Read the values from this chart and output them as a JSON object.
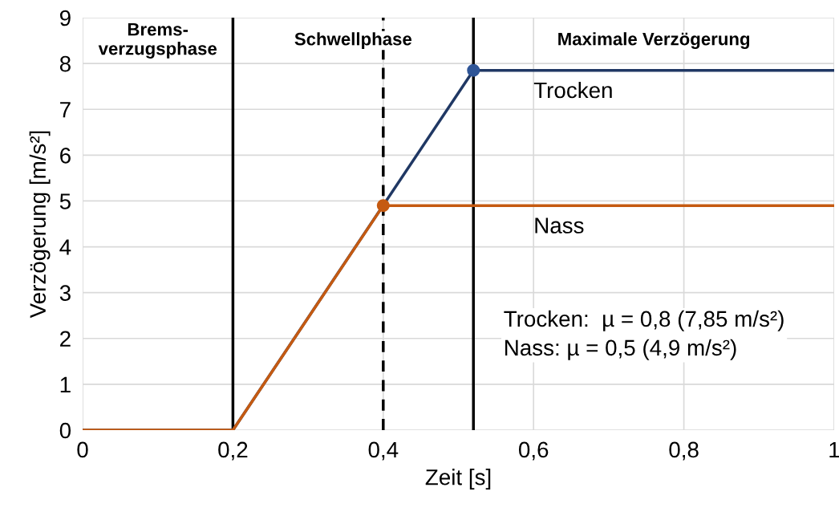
{
  "chart_data": {
    "type": "line",
    "xlabel": "Zeit [s]",
    "ylabel": "Verzögerung [m/s²]",
    "xlim": [
      0,
      1
    ],
    "ylim": [
      0,
      9
    ],
    "xticks": [
      0,
      {
        "value": 0.2,
        "label": "0,2"
      },
      {
        "value": 0.4,
        "label": "0,4"
      },
      {
        "value": 0.6,
        "label": "0,6"
      },
      {
        "value": 0.8,
        "label": "0,8"
      },
      1
    ],
    "yticks": [
      0,
      1,
      2,
      3,
      4,
      5,
      6,
      7,
      8,
      9
    ],
    "grid": true,
    "legend": false,
    "marker": "none",
    "line_style": "solid",
    "series": [
      {
        "name": "Trocken",
        "color": "#203864",
        "x": [
          0,
          0.2,
          0.52,
          1
        ],
        "values": [
          0,
          0,
          7.85,
          7.85
        ]
      },
      {
        "name": "Nass",
        "color": "#c55a11",
        "x": [
          0,
          0.2,
          0.4,
          1
        ],
        "values": [
          0,
          0,
          4.9,
          4.9
        ]
      },
      {
        "type": "scatter",
        "color": "#2f5597",
        "x": [
          0.52
        ],
        "values": [
          7.85
        ],
        "marker": "circle"
      },
      {
        "type": "scatter",
        "color": "#c55a11",
        "x": [
          0.4
        ],
        "values": [
          4.9
        ],
        "marker": "circle"
      }
    ],
    "ref_lines": [
      {
        "axis": "x",
        "value": 0.2,
        "color": "#000000",
        "line_style": "solid"
      },
      {
        "axis": "x",
        "value": 0.4,
        "color": "#000000",
        "line_style": "dashed"
      },
      {
        "axis": "x",
        "value": 0.52,
        "color": "#000000",
        "line_style": "solid"
      }
    ],
    "annotations": [
      "Brems-\nverzugsphase",
      "Schwellphase",
      "Maximale Verzögerung",
      "Trocken:  µ = 0,8 (7,85 m/s²)\nNass: µ = 0,5 (4,9 m/s²)"
    ]
  }
}
